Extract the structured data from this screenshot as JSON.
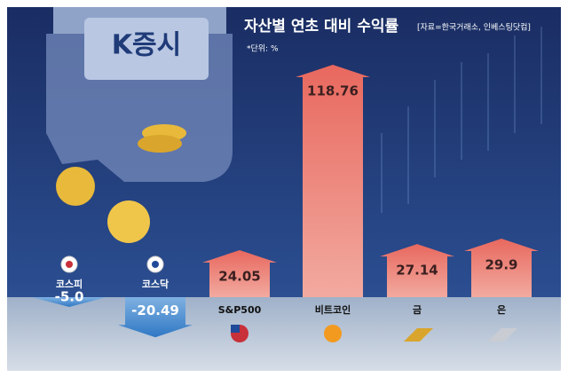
{
  "chart_data": {
    "type": "bar",
    "title": "자산별 연초 대비 수익률",
    "source": "[자료=한국거래소, 인베스팅닷컴]",
    "unit": "*단위: %",
    "badge": "K증시",
    "categories": [
      "코스피",
      "코스닥",
      "S&P500",
      "비트코인",
      "금",
      "은"
    ],
    "values": [
      -5.0,
      -20.49,
      24.05,
      118.76,
      27.14,
      29.9
    ],
    "value_labels": [
      "-5.0",
      "-20.49",
      "24.05",
      "118.76",
      "27.14",
      "29.9"
    ],
    "colors": {
      "positive": "#e8685e",
      "negative": "#2f78c4"
    }
  }
}
